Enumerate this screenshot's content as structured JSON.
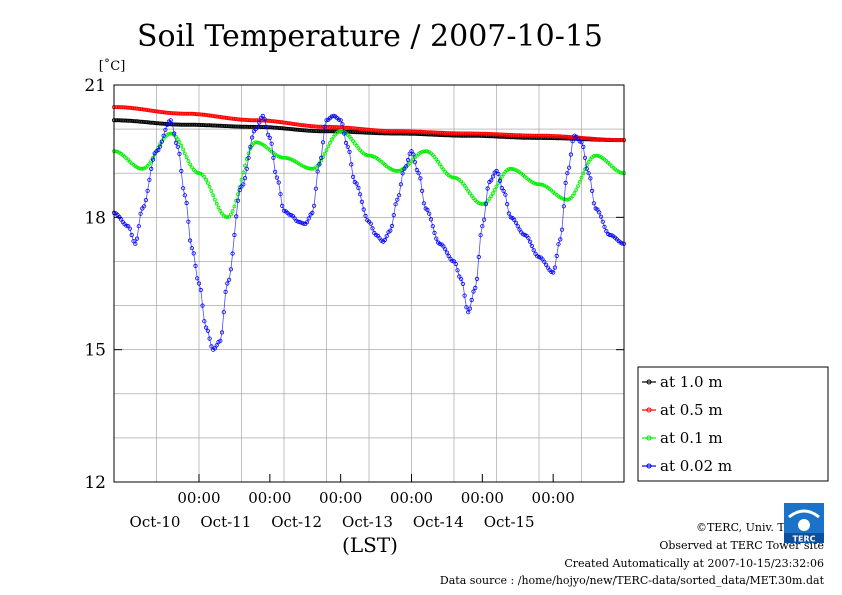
{
  "chart_data": {
    "type": "line",
    "title": "Soil Temperature / 2007-10-15",
    "ylabel": "[˚C]",
    "xlabel": "(LST)",
    "ylim": [
      12,
      21
    ],
    "xlim": [
      0,
      144
    ],
    "y_ticks": [
      12,
      15,
      18,
      21
    ],
    "x_tick_labels": [
      {
        "x": 24,
        "time": "00:00",
        "date": "Oct-10"
      },
      {
        "x": 44,
        "time": "00:00",
        "date": "Oct-11"
      },
      {
        "x": 64,
        "time": "00:00",
        "date": "Oct-12"
      },
      {
        "x": 84,
        "time": "00:00",
        "date": "Oct-13"
      },
      {
        "x": 104,
        "time": "00:00",
        "date": "Oct-14"
      },
      {
        "x": 124,
        "time": "00:00",
        "date": "Oct-15"
      }
    ],
    "grid": true,
    "legend_position": "bottom-right",
    "series": [
      {
        "name": "at 1.0 m",
        "color": "#000000",
        "points": [
          [
            0,
            20.2
          ],
          [
            20,
            20.1
          ],
          [
            40,
            20.05
          ],
          [
            60,
            19.95
          ],
          [
            80,
            19.9
          ],
          [
            100,
            19.85
          ],
          [
            120,
            19.8
          ],
          [
            144,
            19.75
          ]
        ]
      },
      {
        "name": "at 0.5 m",
        "color": "#ff0000",
        "points": [
          [
            0,
            20.5
          ],
          [
            20,
            20.35
          ],
          [
            40,
            20.2
          ],
          [
            60,
            20.05
          ],
          [
            80,
            19.95
          ],
          [
            100,
            19.9
          ],
          [
            120,
            19.85
          ],
          [
            144,
            19.75
          ]
        ]
      },
      {
        "name": "at 0.1 m",
        "color": "#00ee00",
        "points": [
          [
            0,
            19.5
          ],
          [
            8,
            19.1
          ],
          [
            16,
            19.9
          ],
          [
            24,
            19.0
          ],
          [
            32,
            18.0
          ],
          [
            40,
            19.7
          ],
          [
            48,
            19.35
          ],
          [
            56,
            19.1
          ],
          [
            64,
            19.95
          ],
          [
            72,
            19.4
          ],
          [
            80,
            19.05
          ],
          [
            88,
            19.5
          ],
          [
            96,
            18.9
          ],
          [
            104,
            18.3
          ],
          [
            112,
            19.1
          ],
          [
            120,
            18.75
          ],
          [
            128,
            18.4
          ],
          [
            136,
            19.4
          ],
          [
            144,
            19.0
          ]
        ]
      },
      {
        "name": "at 0.02 m",
        "color": "#0000ff",
        "points": [
          [
            0,
            18.1
          ],
          [
            4,
            17.8
          ],
          [
            6,
            17.4
          ],
          [
            8,
            18.2
          ],
          [
            12,
            19.5
          ],
          [
            16,
            20.2
          ],
          [
            18,
            19.6
          ],
          [
            20,
            18.5
          ],
          [
            22,
            17.3
          ],
          [
            24,
            16.5
          ],
          [
            26,
            15.5
          ],
          [
            28,
            15.0
          ],
          [
            30,
            15.2
          ],
          [
            32,
            16.5
          ],
          [
            36,
            18.7
          ],
          [
            40,
            20.0
          ],
          [
            42,
            20.3
          ],
          [
            44,
            19.8
          ],
          [
            46,
            18.9
          ],
          [
            48,
            18.15
          ],
          [
            50,
            18.05
          ],
          [
            52,
            17.9
          ],
          [
            54,
            17.85
          ],
          [
            56,
            18.1
          ],
          [
            58,
            19.2
          ],
          [
            60,
            20.2
          ],
          [
            62,
            20.3
          ],
          [
            64,
            20.2
          ],
          [
            66,
            19.6
          ],
          [
            68,
            18.8
          ],
          [
            72,
            17.9
          ],
          [
            74,
            17.6
          ],
          [
            76,
            17.45
          ],
          [
            78,
            17.7
          ],
          [
            80,
            18.4
          ],
          [
            82,
            19.1
          ],
          [
            84,
            19.5
          ],
          [
            86,
            19.0
          ],
          [
            88,
            18.2
          ],
          [
            92,
            17.4
          ],
          [
            96,
            17.0
          ],
          [
            98,
            16.6
          ],
          [
            100,
            15.85
          ],
          [
            102,
            16.4
          ],
          [
            104,
            17.8
          ],
          [
            106,
            18.8
          ],
          [
            108,
            19.05
          ],
          [
            110,
            18.6
          ],
          [
            112,
            18.0
          ],
          [
            116,
            17.6
          ],
          [
            120,
            17.1
          ],
          [
            124,
            16.75
          ],
          [
            126,
            17.5
          ],
          [
            128,
            19.0
          ],
          [
            130,
            19.85
          ],
          [
            132,
            19.7
          ],
          [
            134,
            19.0
          ],
          [
            136,
            18.2
          ],
          [
            140,
            17.6
          ],
          [
            144,
            17.4
          ]
        ]
      }
    ]
  },
  "credits": {
    "copyright": "©TERC, Univ. Tsukuba",
    "observed": "Observed at TERC Tower site",
    "created": "Created Automatically at 2007-10-15/23:32:06",
    "source": "Data source : /home/hojyo/new/TERC-data/sorted_data/MET.30m.dat"
  },
  "logo": {
    "text": "TERC"
  }
}
